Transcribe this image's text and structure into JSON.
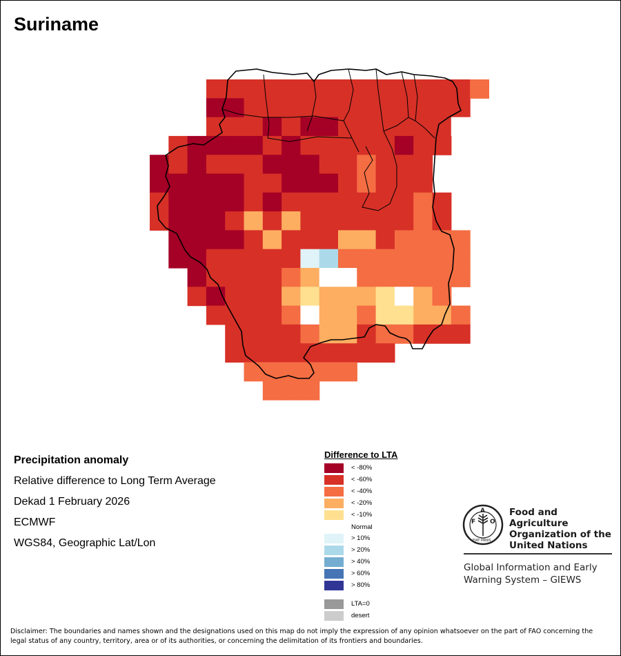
{
  "title": "Suriname",
  "info": {
    "heading": "Precipitation anomaly",
    "subtitle": "Relative difference to Long Term Average",
    "period": "Dekad 1 February 2026",
    "source": "ECMWF",
    "projection": "WGS84, Geographic Lat/Lon"
  },
  "legend": {
    "title": "Difference to LTA",
    "items": [
      {
        "label": "< -80%",
        "color": "#a50026"
      },
      {
        "label": "< -60%",
        "color": "#d73027"
      },
      {
        "label": "< -40%",
        "color": "#f46d43"
      },
      {
        "label": "< -20%",
        "color": "#fdae61"
      },
      {
        "label": "< -10%",
        "color": "#fee090"
      },
      {
        "label": "Normal",
        "color": "#ffffff"
      },
      {
        "label": "> 10%",
        "color": "#e0f3f8"
      },
      {
        "label": "> 20%",
        "color": "#abd9e9"
      },
      {
        "label": "> 40%",
        "color": "#74add1"
      },
      {
        "label": "> 60%",
        "color": "#4575b4"
      },
      {
        "label": "> 80%",
        "color": "#313695"
      },
      {
        "label": "LTA=0",
        "color": "#999999"
      },
      {
        "label": "desert",
        "color": "#cccccc"
      }
    ]
  },
  "map": {
    "palette": {
      "R": "#a50026",
      "D": "#d73027",
      "O": "#f46d43",
      "A": "#fdae61",
      "Y": "#fee090",
      "W": "#ffffff",
      "L": "#e0f3f8",
      "B": "#abd9e9"
    },
    "grid_rows": [
      "...DDDDDDDDDDDDDDO",
      "...RRDDDDDDDDDDDD.",
      "...DDDRDRRDDDDDDW.",
      ".DRRRRDRDDDDDRDD..",
      "RDRDDDRRRDDODDD...",
      "RRRRRDDRRRDODDD...",
      "DRRRRDRDDDDDDDOD..",
      "DRRRDADADDDDDDOD..",
      ".RRRRDADDDAADOOOO.",
      ".RRDDDDDLBOOOOOOO.",
      "..RDDDDOAWWOOOOOO.",
      "..DRDDDAYAAAYWAO..",
      "...DDDDOWAAOYYAAO.",
      "....DDDDOAADOODDD.",
      "....DDDDDDDDD.....",
      ".....OOOOOO.......",
      "......OOO........."
    ]
  },
  "fao": {
    "emblem_text": "FIAT PANIS",
    "name": "Food and Agriculture Organization of the United Nations",
    "giews": "Global Information and Early Warning System – GIEWS"
  },
  "disclaimer": "Disclaimer: The boundaries and names shown and the designations used on this map do not imply the expression of any opinion whatsoever on the part of FAO concerning the legal status of any country, territory, area or of its authorities, or concerning the delimitation of its frontiers and boundaries."
}
